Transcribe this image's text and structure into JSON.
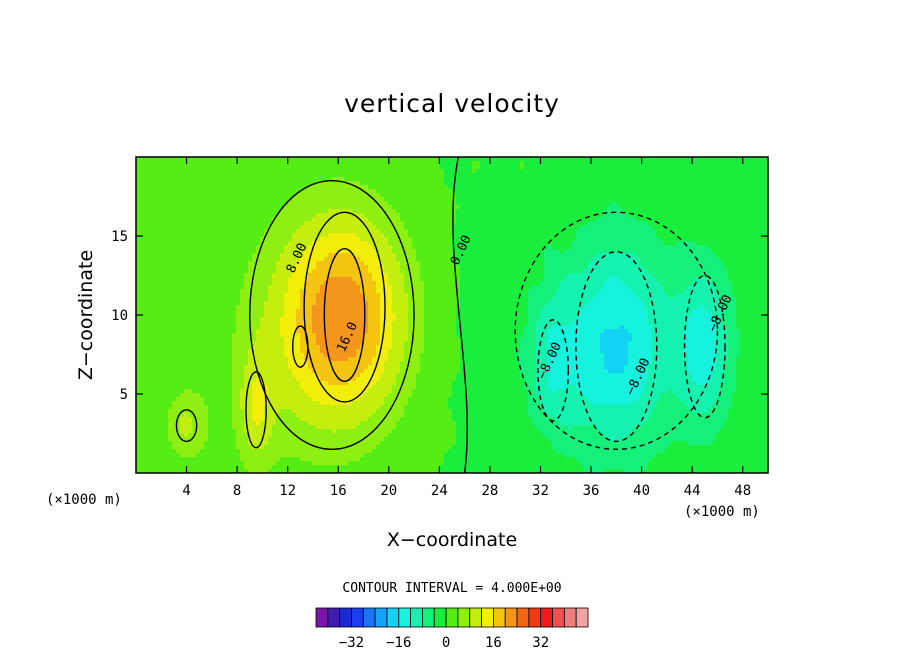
{
  "chart_data": {
    "type": "heatmap",
    "title": "vertical velocity",
    "xlabel": "X−coordinate",
    "ylabel": "Z−coordinate",
    "x_unit": "(×1000 m)",
    "y_unit": "(×1000 m)",
    "xlim": [
      0,
      50
    ],
    "ylim": [
      0,
      20
    ],
    "xticks": [
      4,
      8,
      12,
      16,
      20,
      24,
      28,
      32,
      36,
      40,
      44,
      48
    ],
    "yticks": [
      5,
      10,
      15
    ],
    "contour_interval_text": "CONTOUR INTERVAL = 4.000E+00",
    "contour_labels": [
      "8.00",
      "16.0",
      "0.00",
      "−8.00",
      "−8.00",
      "−8.00"
    ],
    "features": [
      {
        "kind": "updraft",
        "x": 16.5,
        "y": 10,
        "peak": 20,
        "sx": 3.5,
        "sy": 4.5
      },
      {
        "kind": "updraft",
        "x": 13,
        "y": 8,
        "peak": 5,
        "sx": 5,
        "sy": 6
      },
      {
        "kind": "updraft",
        "x": 4,
        "y": 3,
        "peak": 8,
        "sx": 1.2,
        "sy": 1.6
      },
      {
        "kind": "updraft",
        "x": 9.5,
        "y": 4,
        "peak": 9,
        "sx": 1.0,
        "sy": 2.5
      },
      {
        "kind": "downdraft",
        "x": 38,
        "y": 8,
        "peak": -14,
        "sx": 3,
        "sy": 4.5
      },
      {
        "kind": "downdraft",
        "x": 38,
        "y": 9,
        "peak": -3,
        "sx": 8,
        "sy": 7
      },
      {
        "kind": "downdraft",
        "x": 45,
        "y": 8,
        "peak": -12,
        "sx": 1.5,
        "sy": 3.5
      },
      {
        "kind": "downdraft",
        "x": 33,
        "y": 7,
        "peak": -8,
        "sx": 1.4,
        "sy": 3
      }
    ],
    "colorbar": {
      "ticks": [
        -32,
        -16,
        0,
        16,
        32
      ],
      "colors": [
        "#7b15a8",
        "#3f1bb0",
        "#1a2ad0",
        "#1c3ef0",
        "#1c75f4",
        "#16a2f8",
        "#14d2f4",
        "#15f2de",
        "#15f2b0",
        "#14f07a",
        "#1aee3c",
        "#55ee14",
        "#8ef010",
        "#c4ee0e",
        "#f2ee0a",
        "#f4c410",
        "#f4961c",
        "#f26614",
        "#f23a12",
        "#f01a1a",
        "#f05050",
        "#f07c7c",
        "#f2a2a2"
      ],
      "range": [
        -44,
        48
      ]
    }
  }
}
